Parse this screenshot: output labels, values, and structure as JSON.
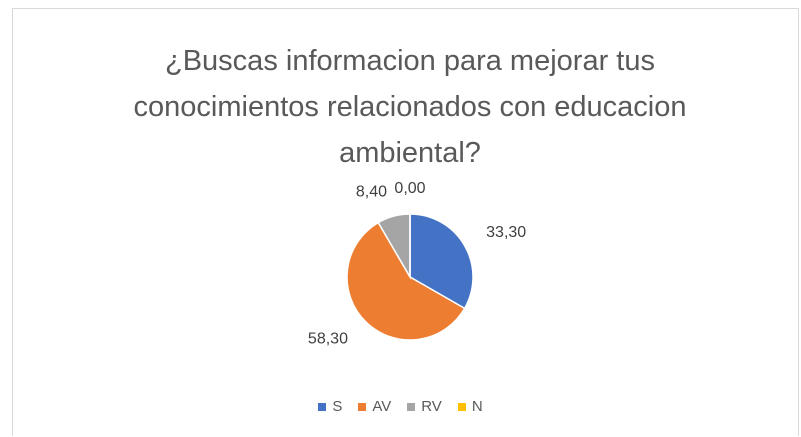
{
  "chart_data": {
    "type": "pie",
    "title": "¿Buscas informacion para mejorar tus conocimientos relacionados con educacion ambiental?",
    "categories": [
      "S",
      "AV",
      "RV",
      "N"
    ],
    "values": [
      33.3,
      58.3,
      8.4,
      0
    ],
    "value_labels": [
      "33,30",
      "58,30",
      "8,40",
      "0,00"
    ],
    "colors": [
      "#4472c4",
      "#ed7d31",
      "#a5a5a5",
      "#ffc000"
    ],
    "legend": "bottom"
  }
}
